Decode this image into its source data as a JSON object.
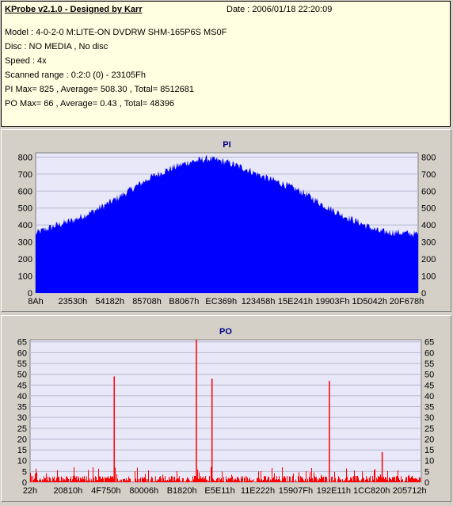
{
  "info": {
    "title": "KProbe v2.1.0 - Designed by Karr",
    "date": "Date : 2006/01/18 22:20:09",
    "lines": [
      "Model : 4-0-2-0 M:LITE-ON DVDRW SHM-165P6S MS0F",
      "Disc : NO MEDIA , No disc",
      "Speed : 4x",
      "Scanned range : 0:2:0 (0) - 23105Fh",
      "PI Max= 825 , Average= 508.30 , Total= 8512681",
      "PO Max= 66 , Average= 0.43 , Total= 48396"
    ]
  },
  "colors": {
    "panel_bg": "#ffffe1",
    "window_bg": "#d4d0c8",
    "plot_bg": "#e8e8f8",
    "pi_fill": "#0000ff",
    "po_fill": "#ff0000",
    "title_color": "#00008b"
  },
  "chart_data": [
    {
      "type": "area",
      "title": "PI",
      "x_tick_labels": [
        "8Ah",
        "23530h",
        "54182h",
        "85708h",
        "B8067h",
        "EC369h",
        "123458h",
        "15E241h",
        "19903Fh",
        "1D5042h",
        "20F678h"
      ],
      "y_ticks": [
        0,
        100,
        200,
        300,
        400,
        500,
        600,
        700,
        800
      ],
      "ylim": [
        0,
        825
      ],
      "grid": true,
      "series": [
        {
          "x_fraction": [
            0,
            0.02,
            0.05,
            0.1,
            0.15,
            0.2,
            0.25,
            0.3,
            0.35,
            0.4,
            0.45,
            0.5,
            0.55,
            0.6,
            0.65,
            0.7,
            0.75,
            0.8,
            0.85,
            0.88,
            0.9,
            0.95,
            1.0
          ],
          "values": [
            350,
            370,
            395,
            430,
            480,
            540,
            610,
            680,
            730,
            770,
            790,
            770,
            730,
            680,
            640,
            590,
            520,
            460,
            410,
            380,
            360,
            355,
            345
          ]
        }
      ]
    },
    {
      "type": "bar",
      "title": "PO",
      "x_tick_labels": [
        "22h",
        "20810h",
        "4F750h",
        "80006h",
        "B1820h",
        "E5E11h",
        "11E222h",
        "15907Fh",
        "192E11h",
        "1CC820h",
        "205712h"
      ],
      "y_ticks": [
        0,
        5,
        10,
        15,
        20,
        25,
        30,
        35,
        40,
        45,
        50,
        55,
        60,
        65
      ],
      "ylim": [
        0,
        66
      ],
      "grid": true,
      "baseline_noise": 3,
      "spikes": [
        {
          "x_fraction": 0.215,
          "value": 49
        },
        {
          "x_fraction": 0.425,
          "value": 66
        },
        {
          "x_fraction": 0.465,
          "value": 48
        },
        {
          "x_fraction": 0.765,
          "value": 47
        },
        {
          "x_fraction": 0.9,
          "value": 14
        }
      ]
    }
  ]
}
